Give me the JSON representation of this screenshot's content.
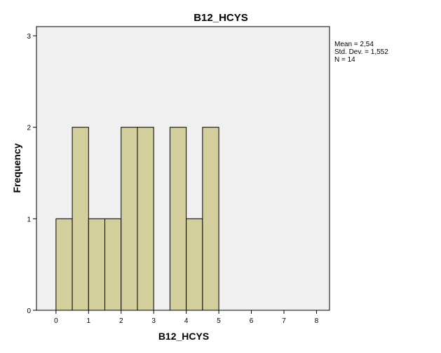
{
  "chart_data": {
    "type": "bar",
    "title": "B12_HCYS",
    "xlabel": "B12_HCYS",
    "ylabel": "Frequency",
    "xlim": [
      -0.6,
      8.4
    ],
    "ylim": [
      0,
      3.1
    ],
    "xticks": [
      0,
      1,
      2,
      3,
      4,
      5,
      6,
      7,
      8
    ],
    "yticks": [
      0,
      1,
      2,
      3
    ],
    "bin_width": 0.5,
    "bins": [
      {
        "start": 0.0,
        "end": 0.5,
        "count": 1
      },
      {
        "start": 0.5,
        "end": 1.0,
        "count": 2
      },
      {
        "start": 1.0,
        "end": 1.5,
        "count": 1
      },
      {
        "start": 1.5,
        "end": 2.0,
        "count": 1
      },
      {
        "start": 2.0,
        "end": 2.5,
        "count": 2
      },
      {
        "start": 2.5,
        "end": 3.0,
        "count": 2
      },
      {
        "start": 3.5,
        "end": 4.0,
        "count": 2
      },
      {
        "start": 4.0,
        "end": 4.5,
        "count": 1
      },
      {
        "start": 4.5,
        "end": 5.0,
        "count": 2
      }
    ],
    "grid": false,
    "colors": {
      "bar_fill": "#d4d09e",
      "bar_stroke": "#000000",
      "plot_bg": "#f0f0f0"
    },
    "stats": {
      "mean": "Mean = 2,54",
      "std_dev": "Std. Dev. = 1,552",
      "n": "N = 14"
    }
  }
}
